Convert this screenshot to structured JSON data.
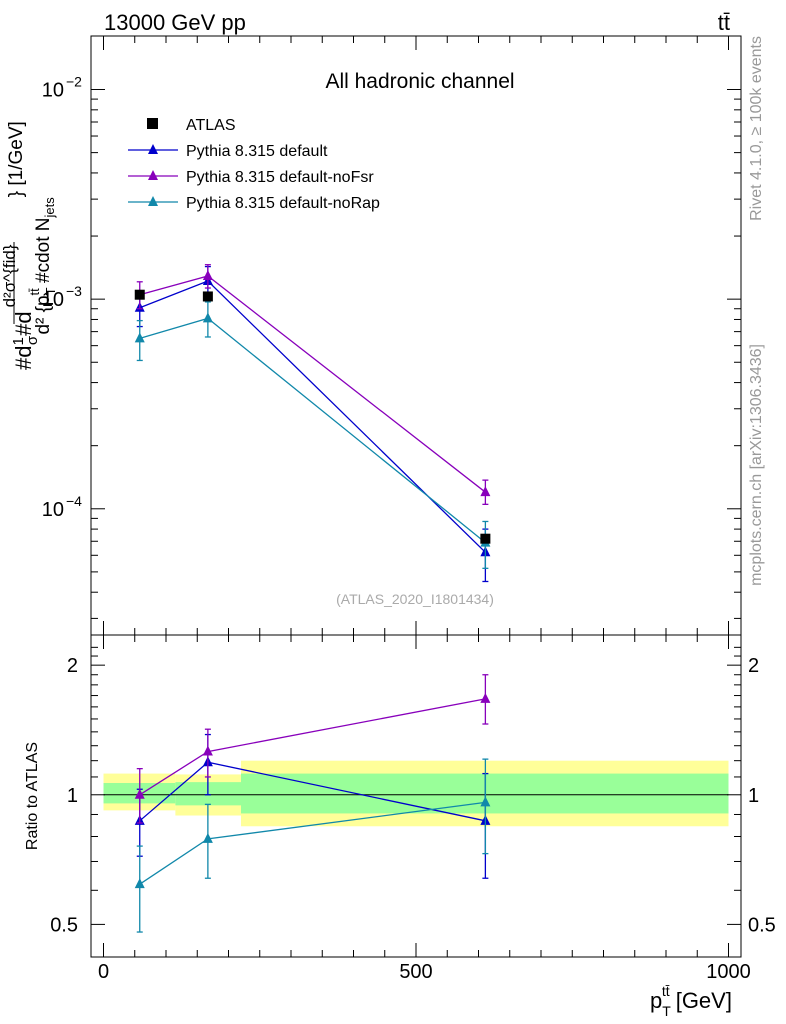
{
  "header": {
    "energy_label": "13000 GeV pp",
    "process_label": "tt̄"
  },
  "side_labels": {
    "rivet": "Rivet 4.1.0, ≥ 100k events",
    "mcplots": "mcplots.cern.ch [arXiv:1306.3436]"
  },
  "chart_data": [
    {
      "id": "main",
      "type": "line",
      "title": "All hadronic channel",
      "watermark": "(ATLAS_2020_I1801434)",
      "ylabel_parts": [
        "#d",
        "1",
        "σ",
        "#d",
        "d²σ^{fid}",
        "d² {p",
        "T",
        "tt̄",
        " #cdot N",
        "jets",
        "} [1/GeV]"
      ],
      "yscale": "log",
      "xlim": [
        -20,
        1020
      ],
      "ylim": [
        2.5e-05,
        0.018
      ],
      "ytick_labels": [
        {
          "value": 0.01,
          "mantissa": "10",
          "exponent": "−2"
        },
        {
          "value": 0.001,
          "mantissa": "10",
          "exponent": "−3"
        },
        {
          "value": 0.0001,
          "mantissa": "10",
          "exponent": "−4"
        }
      ],
      "legend": [
        "ATLAS",
        "Pythia 8.315 default",
        "Pythia 8.315 default-noFsr",
        "Pythia 8.315 default-noRap"
      ],
      "data": {
        "name": "ATLAS",
        "color": "#000000",
        "x": [
          58,
          167,
          611
        ],
        "y": [
          0.00105,
          0.00103,
          7.2e-05
        ]
      },
      "series": [
        {
          "name": "Pythia 8.315 default",
          "color": "#0000cc",
          "x": [
            58,
            167,
            611
          ],
          "y": [
            0.00091,
            0.00122,
            6.2e-05
          ],
          "err_low": [
            0.00074,
            0.00101,
            4.5e-05
          ],
          "err_high": [
            0.00108,
            0.00143,
            8e-05
          ]
        },
        {
          "name": "Pythia 8.315 default-noFsr",
          "color": "#8800bb",
          "x": [
            58,
            167,
            611
          ],
          "y": [
            0.00105,
            0.00129,
            0.00012
          ],
          "err_low": [
            0.0009,
            0.00113,
            0.000105
          ],
          "err_high": [
            0.00121,
            0.00146,
            0.000137
          ]
        },
        {
          "name": "Pythia 8.315 default-noRap",
          "color": "#1188aa",
          "x": [
            58,
            167,
            611
          ],
          "y": [
            0.00065,
            0.00081,
            6.9e-05
          ],
          "err_low": [
            0.00051,
            0.00066,
            5.2e-05
          ],
          "err_high": [
            0.00079,
            0.00097,
            8.7e-05
          ]
        }
      ]
    },
    {
      "id": "ratio",
      "type": "line",
      "ylabel": "Ratio to ATLAS",
      "xlabel": "p_T^{tt̄} [GeV]",
      "xlabel_parts": [
        "p",
        "T",
        "tt̄",
        " [GeV]"
      ],
      "yscale": "log",
      "xlim": [
        -20,
        1020
      ],
      "ylim": [
        0.42,
        2.35
      ],
      "xtick_labels": [
        {
          "value": 0,
          "label": "0"
        },
        {
          "value": 500,
          "label": "500"
        },
        {
          "value": 1000,
          "label": "1000"
        }
      ],
      "ytick_labels": [
        {
          "value": 0.5,
          "label": "0.5"
        },
        {
          "value": 1,
          "label": "1"
        },
        {
          "value": 2,
          "label": "2"
        }
      ],
      "bands": [
        {
          "x0": 0,
          "x1": 115,
          "yellow": [
            0.92,
            1.12
          ],
          "green": [
            0.955,
            1.065
          ]
        },
        {
          "x0": 115,
          "x1": 220,
          "yellow": [
            0.895,
            1.115
          ],
          "green": [
            0.945,
            1.07
          ]
        },
        {
          "x0": 220,
          "x1": 1000,
          "yellow": [
            0.845,
            1.2
          ],
          "green": [
            0.905,
            1.12
          ]
        }
      ],
      "series": [
        {
          "name": "Pythia 8.315 default",
          "color": "#0000cc",
          "x": [
            58,
            167,
            611
          ],
          "y": [
            0.87,
            1.19,
            0.87
          ],
          "err_low": [
            0.72,
            1.0,
            0.64
          ],
          "err_high": [
            1.03,
            1.38,
            1.12
          ]
        },
        {
          "name": "Pythia 8.315 default-noFsr",
          "color": "#8800bb",
          "x": [
            58,
            167,
            611
          ],
          "y": [
            1.0,
            1.26,
            1.67
          ],
          "err_low": [
            0.86,
            1.1,
            1.46
          ],
          "err_high": [
            1.15,
            1.42,
            1.9
          ]
        },
        {
          "name": "Pythia 8.315 default-noRap",
          "color": "#1188aa",
          "x": [
            58,
            167,
            611
          ],
          "y": [
            0.62,
            0.79,
            0.96
          ],
          "err_low": [
            0.48,
            0.64,
            0.73
          ],
          "err_high": [
            0.76,
            0.95,
            1.21
          ]
        }
      ]
    }
  ]
}
